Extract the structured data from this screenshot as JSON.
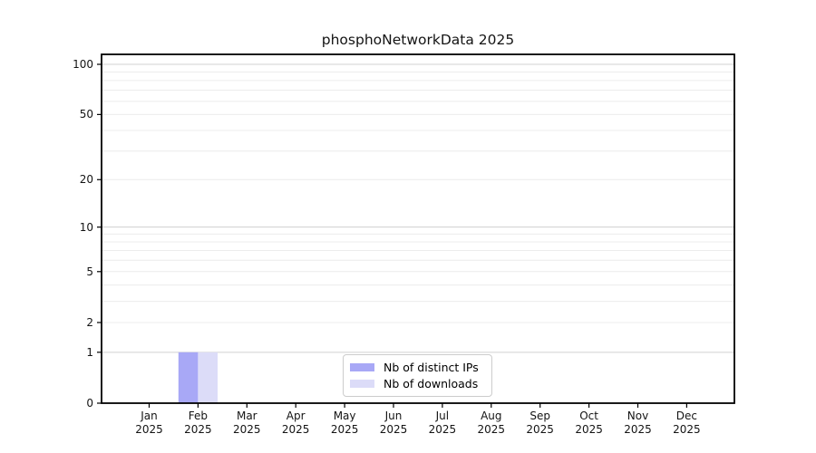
{
  "chart_data": {
    "type": "bar",
    "title": "phosphoNetworkData 2025",
    "categories": [
      "Jan 2025",
      "Feb 2025",
      "Mar 2025",
      "Apr 2025",
      "May 2025",
      "Jun 2025",
      "Jul 2025",
      "Aug 2025",
      "Sep 2025",
      "Oct 2025",
      "Nov 2025",
      "Dec 2025"
    ],
    "series": [
      {
        "name": "Nb of distinct IPs",
        "color": "#a8a8f6",
        "values": [
          0,
          1,
          0,
          0,
          0,
          0,
          0,
          0,
          0,
          0,
          0,
          0
        ]
      },
      {
        "name": "Nb of downloads",
        "color": "#dcdcf8",
        "values": [
          0,
          1,
          0,
          0,
          0,
          0,
          0,
          0,
          0,
          0,
          0,
          0
        ]
      }
    ],
    "y_axis": {
      "scale": "symlog",
      "max": 100,
      "tick_values": [
        0,
        1,
        2,
        5,
        10,
        20,
        50,
        100
      ],
      "major_grid_values": [
        1,
        10,
        100
      ],
      "minor_grid_values": [
        2,
        3,
        4,
        5,
        6,
        7,
        8,
        9,
        20,
        30,
        40,
        50,
        60,
        70,
        80,
        90
      ]
    },
    "legend": {
      "position": "lower center"
    },
    "grid": true
  },
  "colors": {
    "background": "#ffffff",
    "axis": "#000000",
    "text": "#141414",
    "major_grid": "#d0d0d0",
    "minor_grid": "#ececec",
    "legend_border": "#cccccc"
  }
}
